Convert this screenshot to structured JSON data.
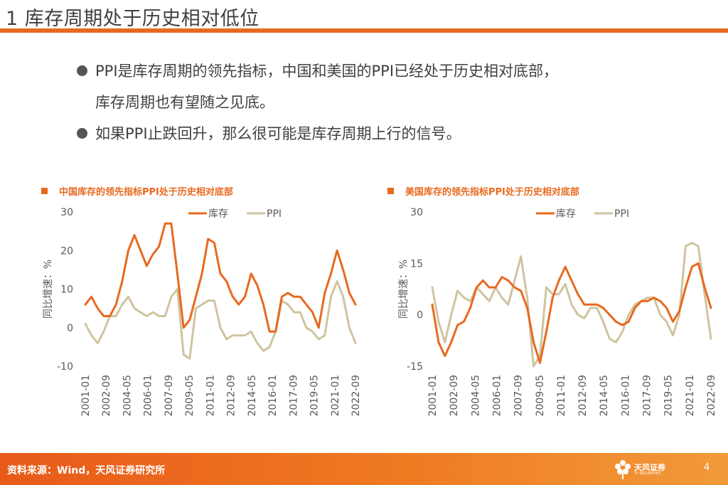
{
  "title": "1 库存周期处于历史相对低位",
  "bullets": [
    {
      "line1": "PPI是库存周期的领先指标，中国和美国的PPI已经处于历史相对底部，",
      "line2": "库存周期也有望随之见底。"
    },
    {
      "line1": "如果PPI止跌回升，那么很可能是库存周期上行的信号。"
    }
  ],
  "footer": {
    "source": "资料来源：Wind，天风证券研究所",
    "logo_text": "天风证券",
    "logo_sub": "TF SECURITIES",
    "page": "4"
  },
  "colors": {
    "accent": "#e8691f",
    "inventory": "#e8691f",
    "ppi": "#cfc4a0",
    "footer_start": "#e85a1a",
    "footer_end": "#f19a3a"
  },
  "chart_data": [
    {
      "type": "line",
      "title": "中国库存的领先指标PPI处于历史相对底部",
      "ylabel": "同比增速：%",
      "xlabel": "",
      "ylim": [
        -10,
        30
      ],
      "yticks": [
        "30",
        "20",
        "10",
        "0",
        "-10"
      ],
      "xticks": [
        "2001-01",
        "2002-09",
        "2004-05",
        "2006-01",
        "2007-09",
        "2009-05",
        "2011-01",
        "2012-09",
        "2014-05",
        "2016-01",
        "2017-09",
        "2019-05",
        "2021-01",
        "2022-09"
      ],
      "legend": [
        "库存",
        "PPI"
      ],
      "series": [
        {
          "name": "库存",
          "x": [
            2001.0,
            2001.5,
            2002.0,
            2002.5,
            2003.0,
            2003.5,
            2004.0,
            2004.5,
            2005.0,
            2005.5,
            2006.0,
            2006.5,
            2007.0,
            2007.5,
            2008.0,
            2008.5,
            2009.0,
            2009.5,
            2010.0,
            2010.5,
            2011.0,
            2011.5,
            2012.0,
            2012.5,
            2013.0,
            2013.5,
            2014.0,
            2014.5,
            2015.0,
            2015.5,
            2016.0,
            2016.5,
            2017.0,
            2017.5,
            2018.0,
            2018.5,
            2019.0,
            2019.5,
            2020.0,
            2020.5,
            2021.0,
            2021.5,
            2022.0,
            2022.5,
            2023.0
          ],
          "values": [
            6,
            8,
            5,
            3,
            3,
            6,
            12,
            20,
            24,
            20,
            16,
            19,
            21,
            27,
            27,
            14,
            0,
            2,
            8,
            14,
            23,
            22,
            14,
            12,
            8,
            6,
            8,
            14,
            11,
            6,
            -1,
            -1,
            8,
            9,
            8,
            8,
            6,
            4,
            0,
            9,
            14,
            20,
            15,
            9,
            6
          ]
        },
        {
          "name": "PPI",
          "x": [
            2001.0,
            2001.5,
            2002.0,
            2002.5,
            2003.0,
            2003.5,
            2004.0,
            2004.5,
            2005.0,
            2005.5,
            2006.0,
            2006.5,
            2007.0,
            2007.5,
            2008.0,
            2008.5,
            2009.0,
            2009.5,
            2010.0,
            2010.5,
            2011.0,
            2011.5,
            2012.0,
            2012.5,
            2013.0,
            2013.5,
            2014.0,
            2014.5,
            2015.0,
            2015.5,
            2016.0,
            2016.5,
            2017.0,
            2017.5,
            2018.0,
            2018.5,
            2019.0,
            2019.5,
            2020.0,
            2020.5,
            2021.0,
            2021.5,
            2022.0,
            2022.5,
            2023.0
          ],
          "values": [
            1,
            -2,
            -4,
            -1,
            3,
            3,
            6,
            8,
            5,
            4,
            3,
            4,
            3,
            3,
            8,
            10,
            -7,
            -8,
            5,
            6,
            7,
            7,
            0,
            -3,
            -2,
            -2,
            -2,
            -1,
            -4,
            -6,
            -5,
            -1,
            7,
            6,
            4,
            4,
            0,
            -1,
            -3,
            -2,
            8,
            12,
            8,
            0,
            -4
          ]
        }
      ]
    },
    {
      "type": "line",
      "title": "美国库存的领先指标PPI处于历史相对底部",
      "ylabel": "同比增速：%",
      "xlabel": "",
      "ylim": [
        -15,
        30
      ],
      "yticks": [
        "30",
        "15",
        "0",
        "-15"
      ],
      "xticks": [
        "2001-01",
        "2002-09",
        "2004-05",
        "2006-01",
        "2007-09",
        "2009-05",
        "2011-01",
        "2012-09",
        "2014-05",
        "2016-01",
        "2017-09",
        "2019-05",
        "2021-01",
        "2022-09"
      ],
      "legend": [
        "库存",
        "PPI"
      ],
      "series": [
        {
          "name": "库存",
          "x": [
            2001.0,
            2001.5,
            2002.0,
            2002.5,
            2003.0,
            2003.5,
            2004.0,
            2004.5,
            2005.0,
            2005.5,
            2006.0,
            2006.5,
            2007.0,
            2007.5,
            2008.0,
            2008.5,
            2009.0,
            2009.5,
            2010.0,
            2010.5,
            2011.0,
            2011.5,
            2012.0,
            2012.5,
            2013.0,
            2013.5,
            2014.0,
            2014.5,
            2015.0,
            2015.5,
            2016.0,
            2016.5,
            2017.0,
            2017.5,
            2018.0,
            2018.5,
            2019.0,
            2019.5,
            2020.0,
            2020.5,
            2021.0,
            2021.5,
            2022.0,
            2022.5,
            2023.0
          ],
          "values": [
            3,
            -8,
            -12,
            -8,
            -3,
            -2,
            2,
            8,
            10,
            8,
            8,
            11,
            10,
            8,
            7,
            2,
            -8,
            -14,
            -5,
            5,
            10,
            14,
            10,
            6,
            3,
            3,
            3,
            2,
            0,
            -2,
            -3,
            -2,
            2,
            4,
            4,
            5,
            4,
            2,
            -2,
            1,
            8,
            14,
            15,
            8,
            2
          ]
        },
        {
          "name": "PPI",
          "x": [
            2001.0,
            2001.5,
            2002.0,
            2002.5,
            2003.0,
            2003.5,
            2004.0,
            2004.5,
            2005.0,
            2005.5,
            2006.0,
            2006.5,
            2007.0,
            2007.5,
            2008.0,
            2008.5,
            2009.0,
            2009.5,
            2010.0,
            2010.5,
            2011.0,
            2011.5,
            2012.0,
            2012.5,
            2013.0,
            2013.5,
            2014.0,
            2014.5,
            2015.0,
            2015.5,
            2016.0,
            2016.5,
            2017.0,
            2017.5,
            2018.0,
            2018.5,
            2019.0,
            2019.5,
            2020.0,
            2020.5,
            2021.0,
            2021.5,
            2022.0,
            2022.5,
            2023.0
          ],
          "values": [
            8,
            -2,
            -8,
            0,
            7,
            5,
            4,
            8,
            6,
            4,
            8,
            5,
            3,
            10,
            17,
            5,
            -15,
            -12,
            8,
            6,
            6,
            9,
            3,
            0,
            -1,
            2,
            2,
            -2,
            -7,
            -8,
            -5,
            0,
            3,
            4,
            5,
            5,
            0,
            -2,
            -6,
            0,
            20,
            21,
            20,
            6,
            -7
          ]
        }
      ]
    }
  ]
}
